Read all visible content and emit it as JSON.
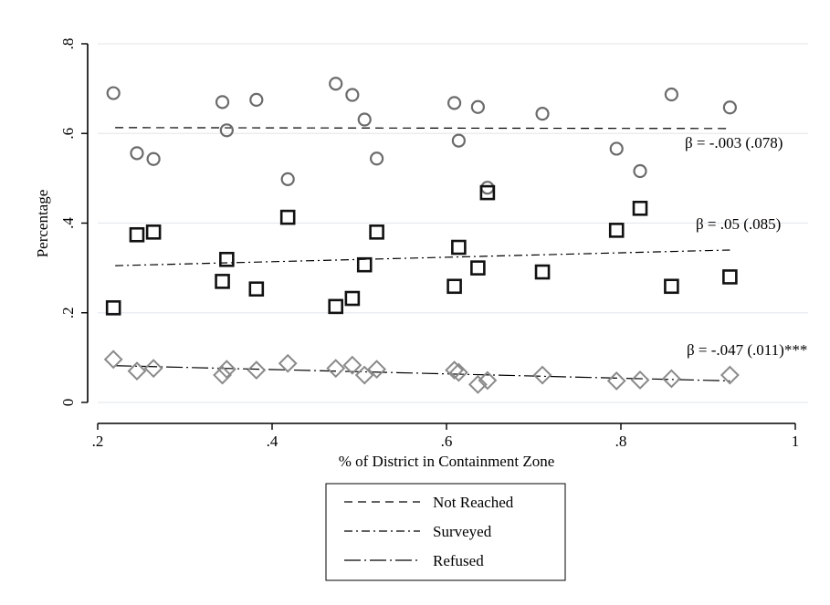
{
  "chart_data": {
    "type": "scatter",
    "xlabel": "% of District in Containment Zone",
    "ylabel": "Percentage",
    "xlim": [
      0.2,
      1.0
    ],
    "ylim": [
      0,
      0.8
    ],
    "x_ticks": [
      0.2,
      0.4,
      0.6,
      0.8,
      1.0
    ],
    "x_tick_labels": [
      ".2",
      ".4",
      ".6",
      ".8",
      "1"
    ],
    "y_ticks": [
      0,
      0.2,
      0.4,
      0.6,
      0.8
    ],
    "y_tick_labels": [
      "0",
      ".2",
      ".4",
      ".6",
      ".8"
    ],
    "grid": "horizontal",
    "legend_position": "bottom",
    "series": [
      {
        "name": "Not Reached",
        "marker": "circle",
        "color": "#6b6b6b",
        "line_style": "dashed",
        "fit": {
          "x_start": 0.22,
          "y_start": 0.613,
          "x_end": 0.925,
          "y_end": 0.611
        },
        "annotation": "β = -.003 (.078)",
        "points": [
          {
            "x": 0.218,
            "y": 0.69
          },
          {
            "x": 0.245,
            "y": 0.556
          },
          {
            "x": 0.264,
            "y": 0.543
          },
          {
            "x": 0.343,
            "y": 0.67
          },
          {
            "x": 0.348,
            "y": 0.607
          },
          {
            "x": 0.382,
            "y": 0.675
          },
          {
            "x": 0.418,
            "y": 0.498
          },
          {
            "x": 0.473,
            "y": 0.711
          },
          {
            "x": 0.492,
            "y": 0.686
          },
          {
            "x": 0.506,
            "y": 0.631
          },
          {
            "x": 0.52,
            "y": 0.544
          },
          {
            "x": 0.609,
            "y": 0.668
          },
          {
            "x": 0.614,
            "y": 0.584
          },
          {
            "x": 0.636,
            "y": 0.659
          },
          {
            "x": 0.647,
            "y": 0.479
          },
          {
            "x": 0.71,
            "y": 0.644
          },
          {
            "x": 0.795,
            "y": 0.566
          },
          {
            "x": 0.822,
            "y": 0.516
          },
          {
            "x": 0.858,
            "y": 0.687
          },
          {
            "x": 0.925,
            "y": 0.658
          }
        ]
      },
      {
        "name": "Surveyed",
        "marker": "square",
        "color": "#111111",
        "line_style": "dashdot",
        "fit": {
          "x_start": 0.22,
          "y_start": 0.305,
          "x_end": 0.925,
          "y_end": 0.34
        },
        "annotation": "β = .05 (.085)",
        "points": [
          {
            "x": 0.218,
            "y": 0.211
          },
          {
            "x": 0.245,
            "y": 0.374
          },
          {
            "x": 0.264,
            "y": 0.38
          },
          {
            "x": 0.343,
            "y": 0.27
          },
          {
            "x": 0.348,
            "y": 0.319
          },
          {
            "x": 0.382,
            "y": 0.253
          },
          {
            "x": 0.418,
            "y": 0.413
          },
          {
            "x": 0.473,
            "y": 0.214
          },
          {
            "x": 0.492,
            "y": 0.232
          },
          {
            "x": 0.506,
            "y": 0.307
          },
          {
            "x": 0.52,
            "y": 0.38
          },
          {
            "x": 0.609,
            "y": 0.259
          },
          {
            "x": 0.614,
            "y": 0.346
          },
          {
            "x": 0.636,
            "y": 0.3
          },
          {
            "x": 0.647,
            "y": 0.468
          },
          {
            "x": 0.71,
            "y": 0.291
          },
          {
            "x": 0.795,
            "y": 0.384
          },
          {
            "x": 0.822,
            "y": 0.433
          },
          {
            "x": 0.858,
            "y": 0.259
          },
          {
            "x": 0.925,
            "y": 0.28
          }
        ]
      },
      {
        "name": "Refused",
        "marker": "diamond",
        "color": "#8a8a8a",
        "line_style": "longdashdot",
        "fit": {
          "x_start": 0.22,
          "y_start": 0.082,
          "x_end": 0.925,
          "y_end": 0.048
        },
        "annotation": "β = -.047 (.011)***",
        "points": [
          {
            "x": 0.218,
            "y": 0.096
          },
          {
            "x": 0.245,
            "y": 0.07
          },
          {
            "x": 0.264,
            "y": 0.076
          },
          {
            "x": 0.343,
            "y": 0.061
          },
          {
            "x": 0.348,
            "y": 0.074
          },
          {
            "x": 0.382,
            "y": 0.072
          },
          {
            "x": 0.418,
            "y": 0.087
          },
          {
            "x": 0.473,
            "y": 0.076
          },
          {
            "x": 0.492,
            "y": 0.083
          },
          {
            "x": 0.506,
            "y": 0.061
          },
          {
            "x": 0.52,
            "y": 0.074
          },
          {
            "x": 0.609,
            "y": 0.072
          },
          {
            "x": 0.614,
            "y": 0.067
          },
          {
            "x": 0.636,
            "y": 0.04
          },
          {
            "x": 0.647,
            "y": 0.049
          },
          {
            "x": 0.71,
            "y": 0.061
          },
          {
            "x": 0.795,
            "y": 0.048
          },
          {
            "x": 0.822,
            "y": 0.05
          },
          {
            "x": 0.858,
            "y": 0.053
          },
          {
            "x": 0.925,
            "y": 0.061
          }
        ]
      }
    ]
  }
}
